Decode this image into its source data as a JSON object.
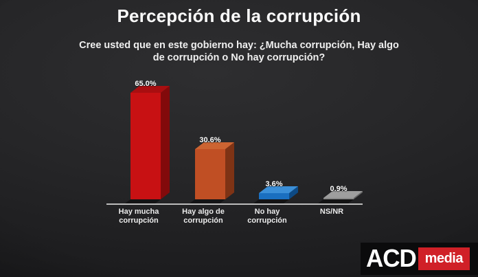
{
  "slide": {
    "title": "Percepción de la corrupción",
    "subtitle": "Cree usted que en este gobierno hay: ¿Mucha corrupción, Hay algo\nde corrupción o No hay corrupción?"
  },
  "chart_data": {
    "type": "bar",
    "style": "3d",
    "title": "Percepción de la corrupción",
    "question": "Cree usted que en este gobierno hay: ¿Mucha corrupción, Hay algo de corrupción o No hay corrupción?",
    "categories": [
      "Hay mucha\ncorrupción",
      "Hay algo de\ncorrupción",
      "No hay\ncorrupción",
      "NS/NR"
    ],
    "values": [
      65.0,
      30.6,
      3.6,
      0.9
    ],
    "value_labels": [
      "65.0%",
      "30.6%",
      "3.6%",
      "0.9%"
    ],
    "unit": "%",
    "xlabel": "",
    "ylabel": "",
    "ylim": [
      0,
      70
    ],
    "grid": false,
    "legend": false,
    "bar_colors": [
      {
        "front": "#c81113",
        "top": "#a90e10",
        "side": "#820a0b"
      },
      {
        "front": "#c04f24",
        "top": "#cc6432",
        "side": "#7e3315"
      },
      {
        "front": "#1a6fc0",
        "top": "#3b8fd8",
        "side": "#0d4a85"
      },
      {
        "front": "#888888",
        "top": "#9e9e9e",
        "side": "#666666"
      }
    ],
    "axis_line_color": "#bdbdbd",
    "background_color": "#232325",
    "text_color": "#ffffff"
  },
  "logo": {
    "acd": "ACD",
    "media": "media",
    "media_bg": "#d02027"
  }
}
